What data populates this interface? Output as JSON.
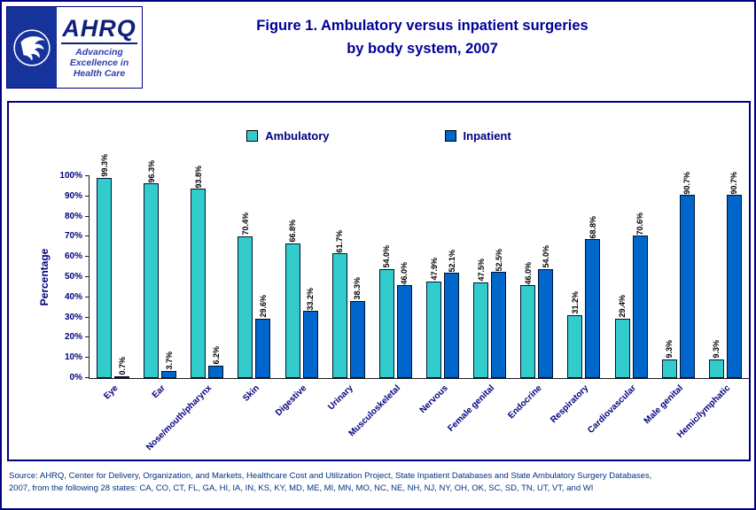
{
  "header": {
    "logo": {
      "ahrq_text": "AHRQ",
      "tagline_line1": "Advancing",
      "tagline_line2": "Excellence in",
      "tagline_line3": "Health Care"
    },
    "title_line1": "Figure 1. Ambulatory versus inpatient surgeries",
    "title_line2": "by body system, 2007"
  },
  "chart_data": {
    "type": "bar",
    "title": "Figure 1. Ambulatory versus inpatient surgeries by body system, 2007",
    "categories": [
      "Eye",
      "Ear",
      "Nose/mouth/pharynx",
      "Skin",
      "Digestive",
      "Urinary",
      "Musculoskeletal",
      "Nervous",
      "Female genital",
      "Endocrine",
      "Respiratory",
      "Cardiovascular",
      "Male genital",
      "Hemic/lymphatic"
    ],
    "series": [
      {
        "name": "Ambulatory",
        "color": "#33CCCC",
        "values": [
          99.3,
          96.3,
          93.8,
          70.4,
          66.8,
          61.7,
          54.0,
          47.9,
          47.5,
          46.0,
          31.2,
          29.4,
          9.3,
          9.3
        ]
      },
      {
        "name": "Inpatient",
        "color": "#0066CC",
        "values": [
          0.7,
          3.7,
          6.2,
          29.6,
          33.2,
          38.3,
          46.0,
          52.1,
          52.5,
          54.0,
          68.8,
          70.6,
          90.7,
          90.7
        ]
      }
    ],
    "xlabel": "",
    "ylabel": "Percentage",
    "ylim": [
      0,
      100
    ],
    "ytick_step": 10,
    "yticks": [
      "0%",
      "10%",
      "20%",
      "30%",
      "40%",
      "50%",
      "60%",
      "70%",
      "80%",
      "90%",
      "100%"
    ],
    "value_label_suffix": "%",
    "legend_position": "top",
    "grid": false
  },
  "footer": {
    "source_line1": "Source: AHRQ, Center for Delivery, Organization, and Markets, Healthcare Cost and Utilization Project, State Inpatient Databases and State Ambulatory Surgery Databases,",
    "source_line2": "2007, from the following 28 states: CA, CO, CT, FL, GA, HI, IA, IN, KS, KY, MD, ME, MI, MN, MO, NC, NE, NH, NJ, NY, OH, OK, SC, SD, TN, UT, VT, and WI"
  },
  "colors": {
    "ambulatory": "#33CCCC",
    "inpatient": "#0066CC",
    "title_text": "#000099",
    "border": "#000080"
  }
}
